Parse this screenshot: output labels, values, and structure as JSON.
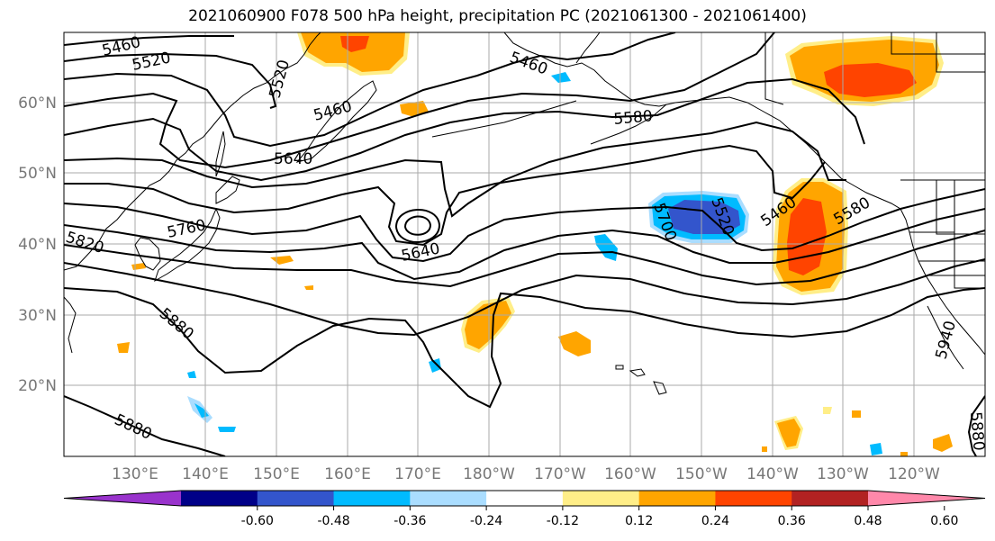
{
  "title": "2021060900 F078 500 hPa height, precipitation PC (2021061300 - 2021061400)",
  "lat_labels": [
    "60°N",
    "50°N",
    "40°N",
    "30°N",
    "20°N"
  ],
  "lon_labels": [
    "130°E",
    "140°E",
    "150°E",
    "160°E",
    "170°E",
    "180°W",
    "170°W",
    "160°W",
    "150°W",
    "140°W",
    "130°W",
    "120°W"
  ],
  "contour_labels": [
    "5460",
    "5520",
    "5520",
    "5460",
    "5460",
    "5580",
    "5640",
    "5760",
    "5820",
    "5640",
    "5700",
    "5520",
    "5460",
    "5580",
    "5880",
    "5880",
    "5940",
    "5880"
  ],
  "colorbar": {
    "ticks": [
      "-0.60",
      "-0.48",
      "-0.36",
      "-0.24",
      "-0.12",
      "0.12",
      "0.24",
      "0.36",
      "0.48",
      "0.60"
    ],
    "colors": [
      "#9933cc",
      "#000088",
      "#3355cc",
      "#00bbff",
      "#aaddff",
      "#ffffff",
      "#ffee88",
      "#ffa500",
      "#ff4400",
      "#b22222",
      "#ff88aa"
    ]
  },
  "colors": {
    "coast": "#000000",
    "grid": "#aaaaaa",
    "contour": "#000000"
  }
}
